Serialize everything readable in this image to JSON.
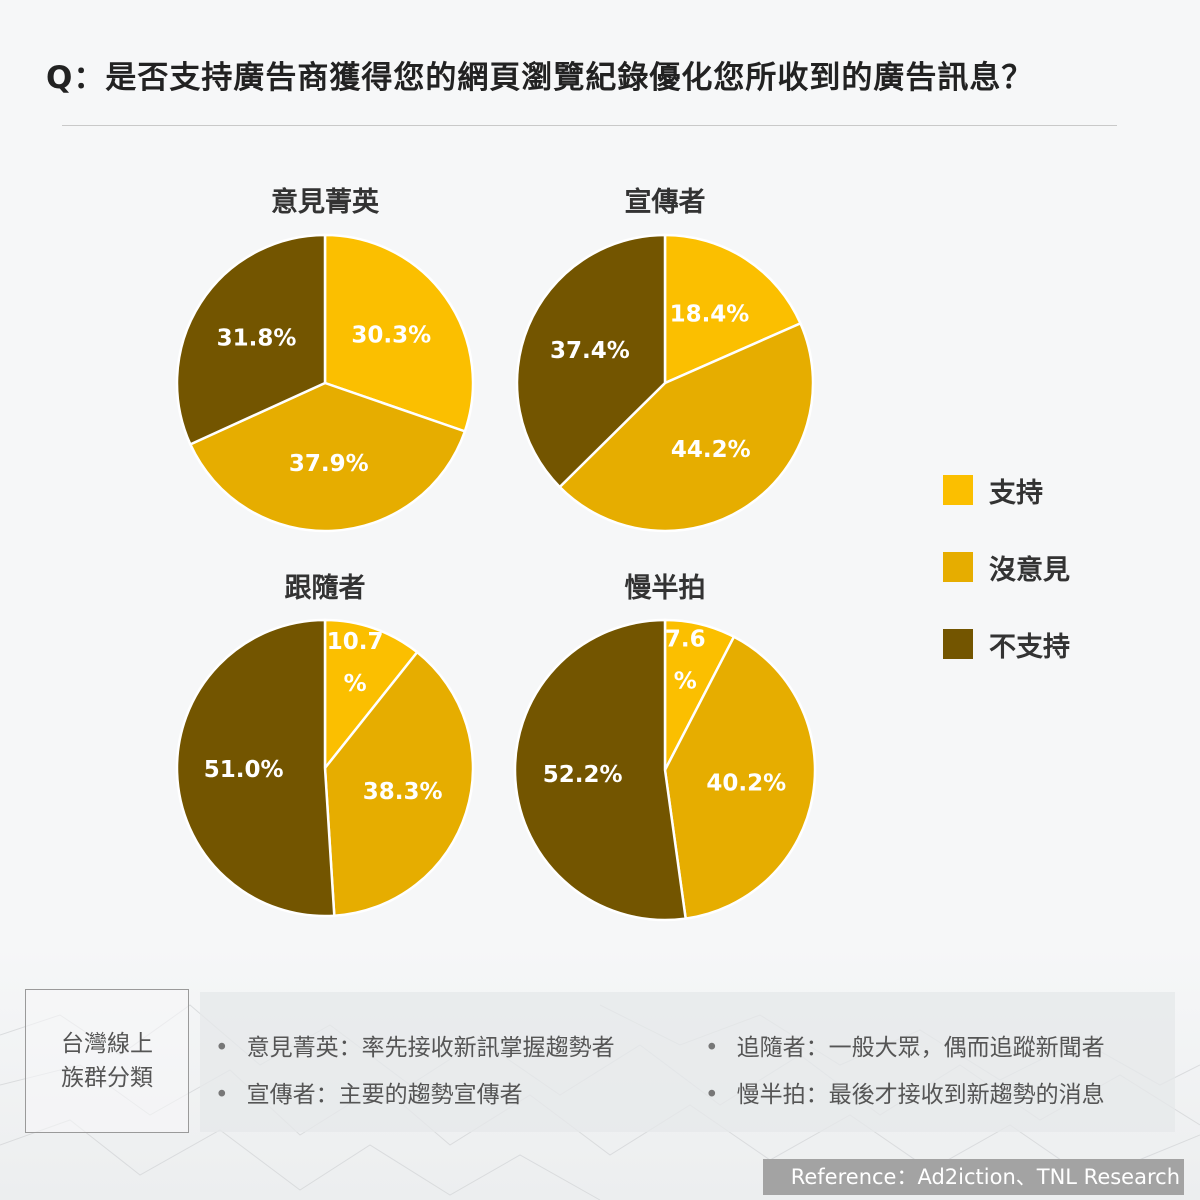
{
  "question": "Q：是否支持廣告商獲得您的網頁瀏覽紀錄優化您所收到的廣告訊息？",
  "colors": {
    "support": "#fbbf00",
    "neutral": "#e6ad00",
    "oppose": "#735500"
  },
  "legend": [
    {
      "label": "支持",
      "color": "#fbbf00"
    },
    {
      "label": "沒意見",
      "color": "#e6ad00"
    },
    {
      "label": "不支持",
      "color": "#735500"
    }
  ],
  "chart_data": [
    {
      "type": "pie",
      "title": "意見菁英",
      "categories": [
        "支持",
        "沒意見",
        "不支持"
      ],
      "values": [
        30.3,
        37.9,
        31.8
      ],
      "labels": [
        "30.3%",
        "37.9%",
        "31.8%"
      ]
    },
    {
      "type": "pie",
      "title": "宣傳者",
      "categories": [
        "支持",
        "沒意見",
        "不支持"
      ],
      "values": [
        18.4,
        44.2,
        37.4
      ],
      "labels": [
        "18.4%",
        "44.2%",
        "37.4%"
      ]
    },
    {
      "type": "pie",
      "title": "跟隨者",
      "categories": [
        "支持",
        "沒意見",
        "不支持"
      ],
      "values": [
        10.7,
        38.3,
        51.0
      ],
      "labels": [
        "10.7%",
        "38.3%",
        "51.0%"
      ]
    },
    {
      "type": "pie",
      "title": "慢半拍",
      "categories": [
        "支持",
        "沒意見",
        "不支持"
      ],
      "values": [
        7.6,
        40.2,
        52.2
      ],
      "labels": [
        "7.6%",
        "40.2%",
        "52.2%"
      ]
    }
  ],
  "groups_box": {
    "line1": "台灣線上",
    "line2": "族群分類"
  },
  "definitions": [
    {
      "text": "意見菁英：率先接收新訊掌握趨勢者"
    },
    {
      "text": "宣傳者：主要的趨勢宣傳者"
    },
    {
      "text": "追隨者：一般大眾，偶而追蹤新聞者"
    },
    {
      "text": "慢半拍：最後才接收到新趨勢的消息"
    }
  ],
  "bullet_char": "•",
  "reference": "Reference：Ad2iction、TNL Research"
}
